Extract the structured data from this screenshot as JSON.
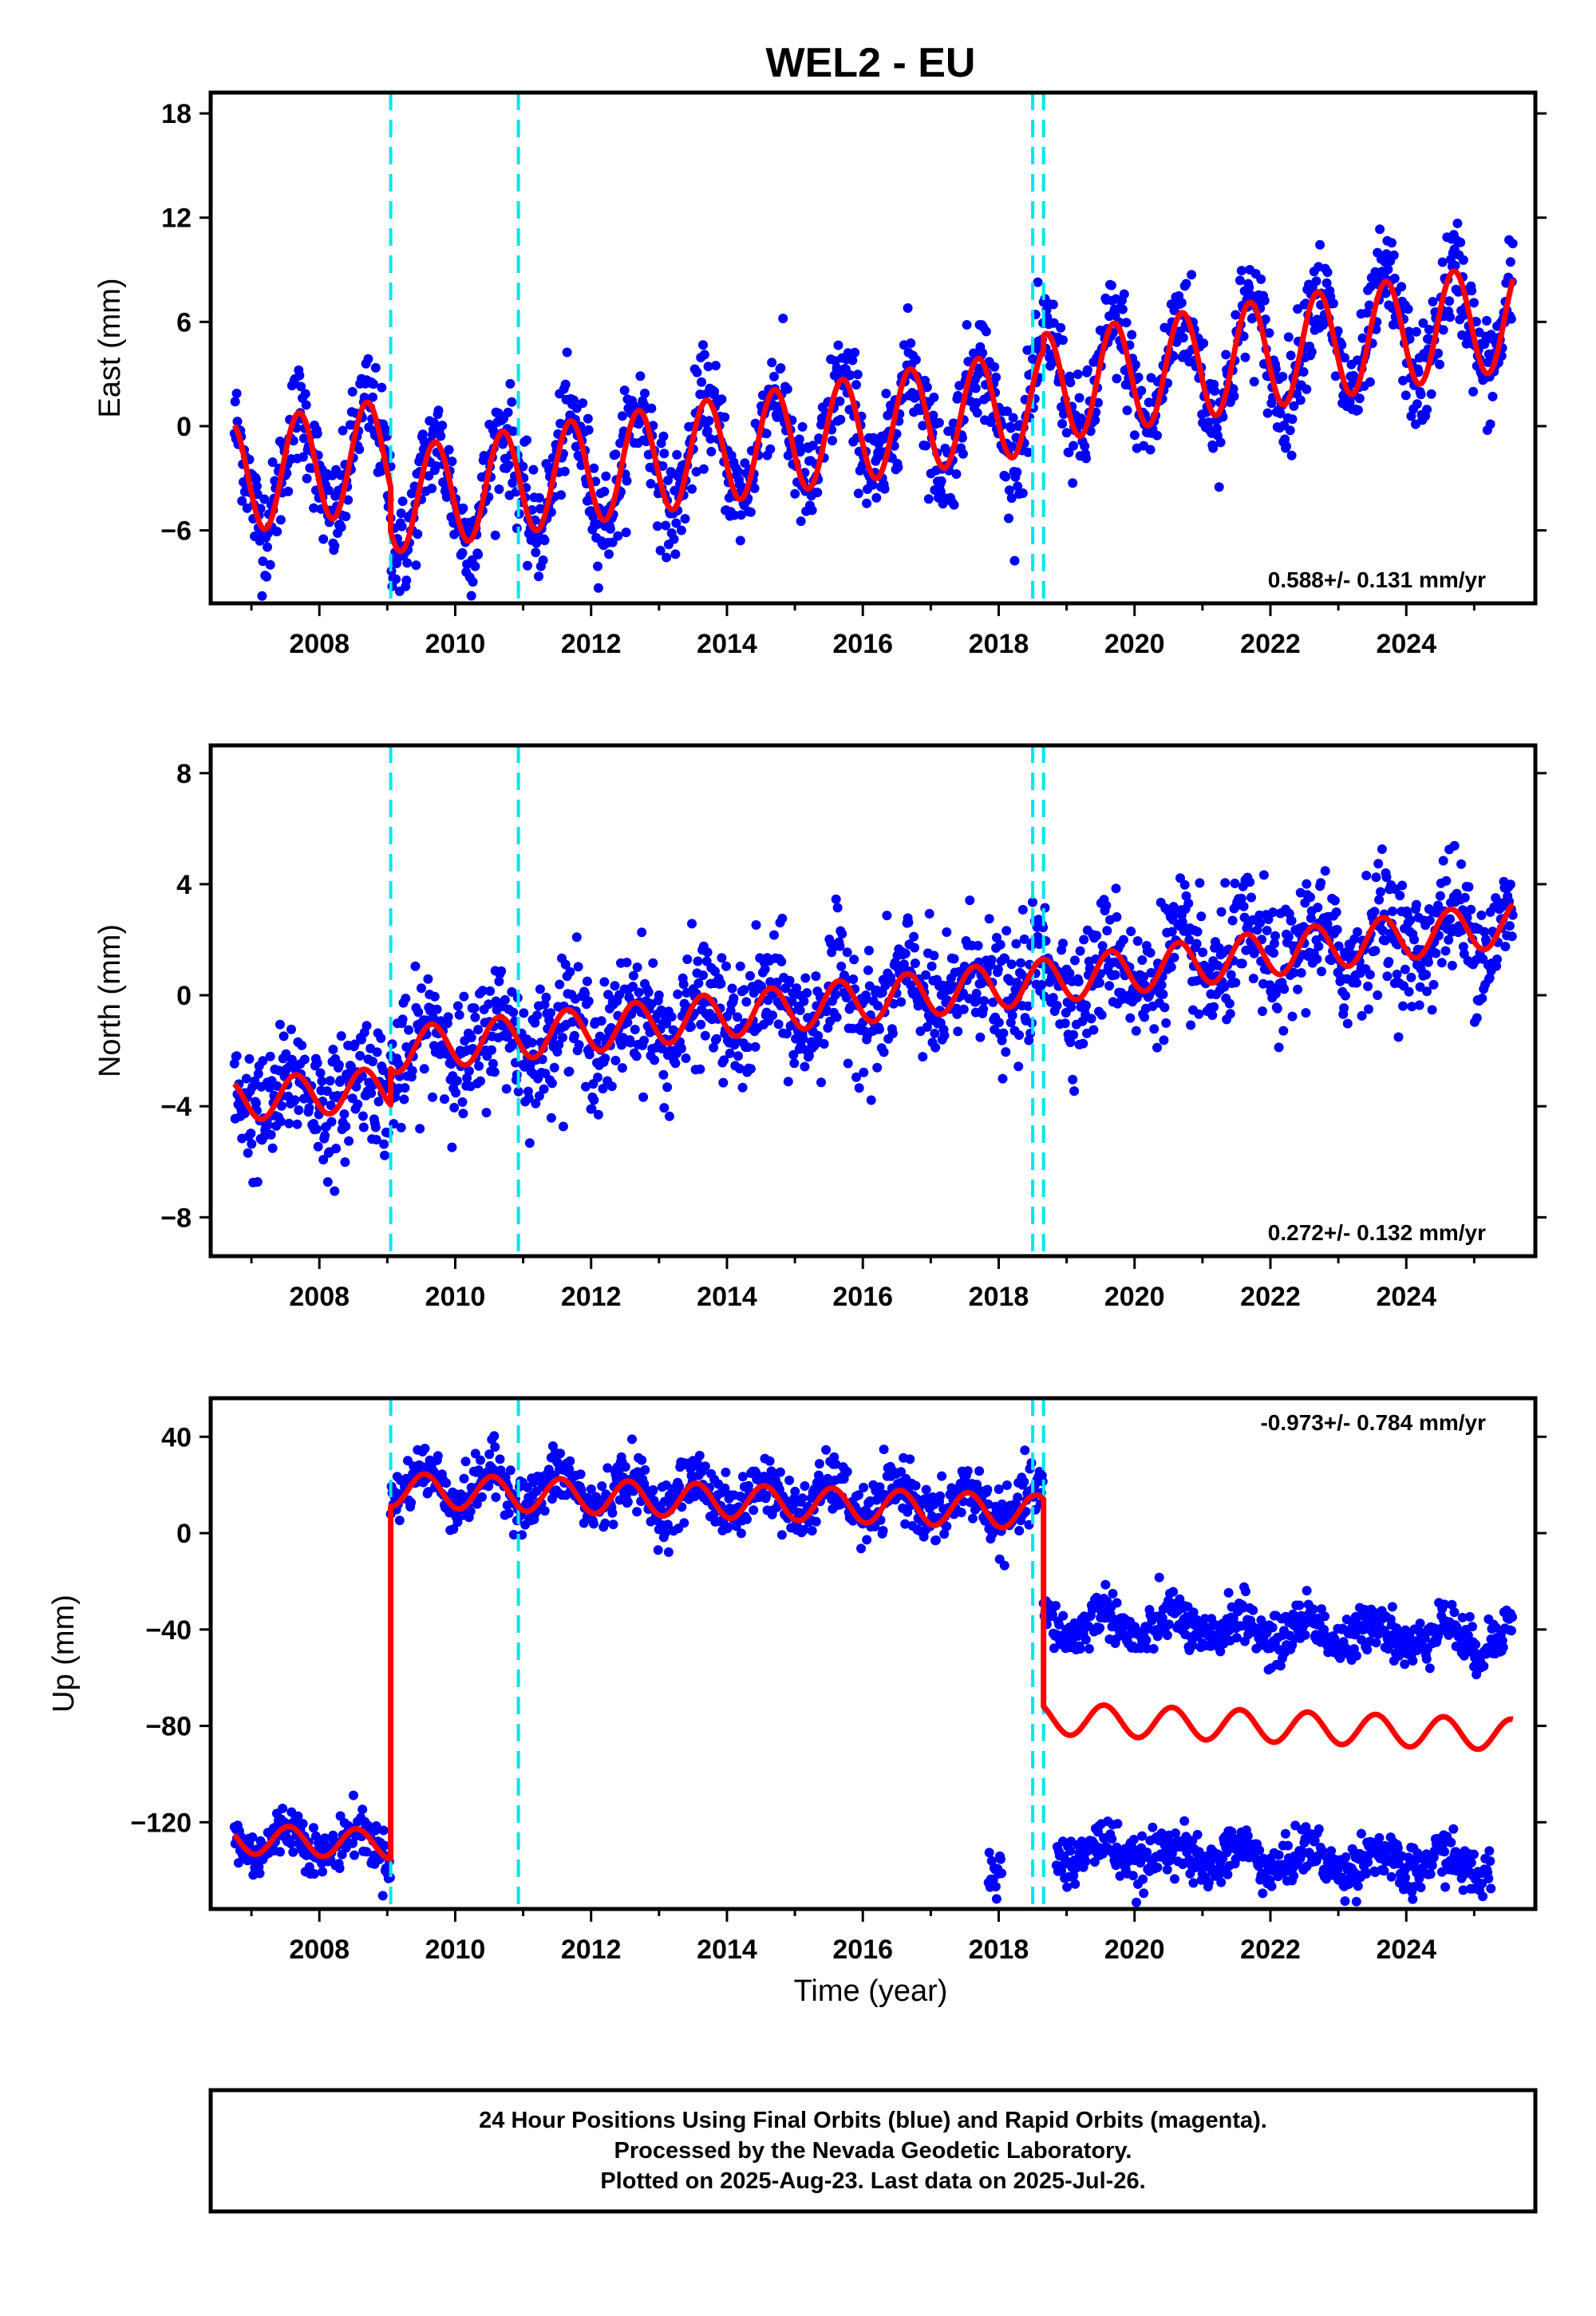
{
  "title": "WEL2 - EU",
  "caption": {
    "lines": [
      "24 Hour Positions Using Final Orbits (blue) and Rapid Orbits (magenta).",
      "Processed by the Nevada Geodetic Laboratory.",
      "Plotted on 2025-Aug-23. Last data on 2025-Jul-26."
    ]
  },
  "colors": {
    "data_points": "#0000ff",
    "model_fit": "#ff0000",
    "event_lines": "#00e5ee",
    "frame": "#000000"
  },
  "chart_data": [
    {
      "type": "scatter",
      "ylabel": "East (mm)",
      "xlabel": "",
      "xlim": [
        2006.4,
        2025.9
      ],
      "ylim": [
        -10.2,
        19.2
      ],
      "xticks": [
        2008,
        2010,
        2012,
        2014,
        2016,
        2018,
        2020,
        2022,
        2024
      ],
      "yticks": [
        -6,
        0,
        6,
        12,
        18
      ],
      "rate_label": "0.588+/- 0.131 mm/yr",
      "rate_position": "bottom-right",
      "grid": false,
      "event_lines": [
        2009.05,
        2010.93,
        2018.5,
        2018.66
      ],
      "data_span": [
        2006.75,
        2025.57
      ],
      "series": [
        {
          "role": "fit",
          "segments": [
            {
              "from": 2006.75,
              "to": 2009.05,
              "offset": -3.0,
              "rate": 0.6,
              "annual_amp": 3.2,
              "phase_year": 0.45
            },
            {
              "from": 2009.05,
              "to": 2018.66,
              "offset": -4.3,
              "rate": 0.6,
              "annual_amp": 3.0,
              "phase_year": 0.45
            },
            {
              "from": 2018.66,
              "to": 2025.57,
              "offset": 2.2,
              "rate": 0.6,
              "annual_amp": 3.1,
              "phase_year": 0.45
            }
          ],
          "scatter_sigma": 1.5
        }
      ]
    },
    {
      "type": "scatter",
      "ylabel": "North (mm)",
      "xlabel": "",
      "xlim": [
        2006.4,
        2025.9
      ],
      "ylim": [
        -9.4,
        9.0
      ],
      "xticks": [
        2008,
        2010,
        2012,
        2014,
        2016,
        2018,
        2020,
        2022,
        2024
      ],
      "yticks": [
        -8,
        -4,
        0,
        4,
        8
      ],
      "rate_label": "0.272+/- 0.132 mm/yr",
      "rate_position": "bottom-right",
      "grid": false,
      "event_lines": [
        2009.05,
        2010.93,
        2018.5,
        2018.66
      ],
      "data_span": [
        2006.75,
        2025.57
      ],
      "series": [
        {
          "role": "fit",
          "segments": [
            {
              "from": 2006.75,
              "to": 2009.05,
              "offset": -3.8,
              "rate": 0.2,
              "annual_amp": 0.75,
              "phase_year": 0.4
            },
            {
              "from": 2009.05,
              "to": 2018.66,
              "offset": -2.0,
              "rate": 0.26,
              "annual_amp": 0.8,
              "phase_year": 0.4
            },
            {
              "from": 2018.66,
              "to": 2025.57,
              "offset": 0.5,
              "rate": 0.3,
              "annual_amp": 0.8,
              "phase_year": 0.4
            }
          ],
          "scatter_sigma": 1.1
        }
      ]
    },
    {
      "type": "scatter",
      "ylabel": "Up (mm)",
      "xlabel": "Time (year)",
      "xlim": [
        2006.4,
        2025.9
      ],
      "ylim": [
        -156,
        56
      ],
      "xticks": [
        2008,
        2010,
        2012,
        2014,
        2016,
        2018,
        2020,
        2022,
        2024
      ],
      "yticks": [
        -120,
        -80,
        -40,
        0,
        40
      ],
      "rate_label": "-0.973+/- 0.784 mm/yr",
      "rate_position": "top-right",
      "grid": false,
      "event_lines": [
        2009.05,
        2010.93,
        2018.5,
        2018.66
      ],
      "data_span": [
        2006.75,
        2025.57
      ],
      "series": [
        {
          "role": "fit",
          "segments": [
            {
              "from": 2006.75,
              "to": 2009.05,
              "offset": -127,
              "rate": -0.97,
              "annual_amp": 6,
              "phase_year": 0.3
            },
            {
              "from": 2009.05,
              "to": 2018.66,
              "offset": 18,
              "rate": -0.97,
              "annual_amp": 7,
              "phase_year": 0.3
            },
            {
              "from": 2018.66,
              "to": 2025.57,
              "offset": -77,
              "rate": -0.97,
              "annual_amp": 6.5,
              "phase_year": 0.3
            }
          ],
          "scatter_sigma": 5
        },
        {
          "role": "observed-clusters",
          "clusters": [
            {
              "from": 2006.75,
              "to": 2009.05,
              "center": -127,
              "sigma": 5,
              "annual_amp": 6
            },
            {
              "from": 2009.05,
              "to": 2018.66,
              "center": 20,
              "sigma": 6,
              "annual_amp": 7
            },
            {
              "from": 2018.66,
              "to": 2025.57,
              "center": -37,
              "sigma": 5,
              "annual_amp": 6
            },
            {
              "from": 2018.85,
              "to": 2025.25,
              "center": -132,
              "sigma": 5,
              "annual_amp": 5
            },
            {
              "from": 2017.85,
              "to": 2018.05,
              "center": -140,
              "sigma": 5,
              "annual_amp": 0
            }
          ]
        }
      ]
    }
  ]
}
